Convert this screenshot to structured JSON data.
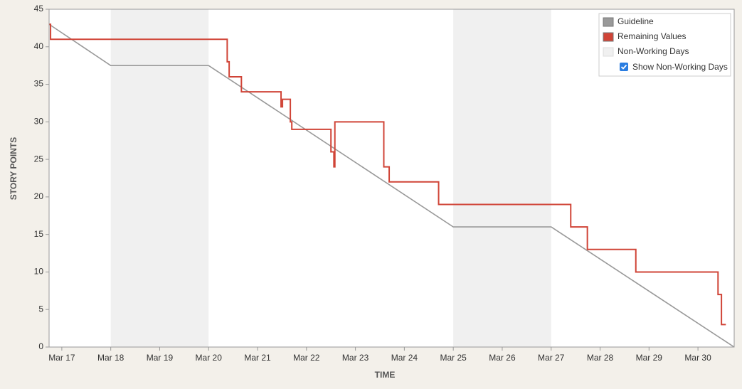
{
  "chart_data": {
    "type": "line",
    "step": "after",
    "xlabel": "TIME",
    "ylabel": "STORY POINTS",
    "xlim": [
      16.74,
      30.74
    ],
    "ylim": [
      0,
      45
    ],
    "xticks": [
      {
        "value": 17,
        "label": "Mar 17"
      },
      {
        "value": 18,
        "label": "Mar 18"
      },
      {
        "value": 19,
        "label": "Mar 19"
      },
      {
        "value": 20,
        "label": "Mar 20"
      },
      {
        "value": 21,
        "label": "Mar 21"
      },
      {
        "value": 22,
        "label": "Mar 22"
      },
      {
        "value": 23,
        "label": "Mar 23"
      },
      {
        "value": 24,
        "label": "Mar 24"
      },
      {
        "value": 25,
        "label": "Mar 25"
      },
      {
        "value": 26,
        "label": "Mar 26"
      },
      {
        "value": 27,
        "label": "Mar 27"
      },
      {
        "value": 28,
        "label": "Mar 28"
      },
      {
        "value": 29,
        "label": "Mar 29"
      },
      {
        "value": 30,
        "label": "Mar 30"
      }
    ],
    "yticks": [
      0,
      5,
      10,
      15,
      20,
      25,
      30,
      35,
      40,
      45
    ],
    "grid": false,
    "legend": "upper right",
    "series": [
      {
        "name": "Guideline",
        "color": "#999999",
        "step": false,
        "x": [
          16.74,
          18,
          20,
          25,
          27,
          30.74
        ],
        "values": [
          43,
          37.5,
          37.5,
          16,
          16,
          0
        ]
      },
      {
        "name": "Remaining Values",
        "color": "#d04437",
        "step": true,
        "x": [
          16.74,
          16.77,
          20.38,
          20.42,
          20.67,
          21.48,
          21.51,
          21.67,
          21.7,
          22.5,
          22.56,
          22.58,
          23.58,
          23.69,
          24.7,
          27.4,
          27.74,
          28.73,
          30.41,
          30.48,
          30.57
        ],
        "values": [
          43,
          41,
          38,
          36,
          34,
          32,
          33,
          30,
          29,
          26,
          24,
          30,
          24,
          22,
          19,
          16,
          13,
          10,
          7,
          3,
          3
        ]
      }
    ],
    "non_working_label": "Non-Working Days",
    "non_working_color": "#f0f0f0",
    "non_working_days": [
      [
        18,
        20
      ],
      [
        25,
        27
      ]
    ],
    "checkbox_label": "Show Non-Working Days",
    "show_non_working_days": true
  }
}
